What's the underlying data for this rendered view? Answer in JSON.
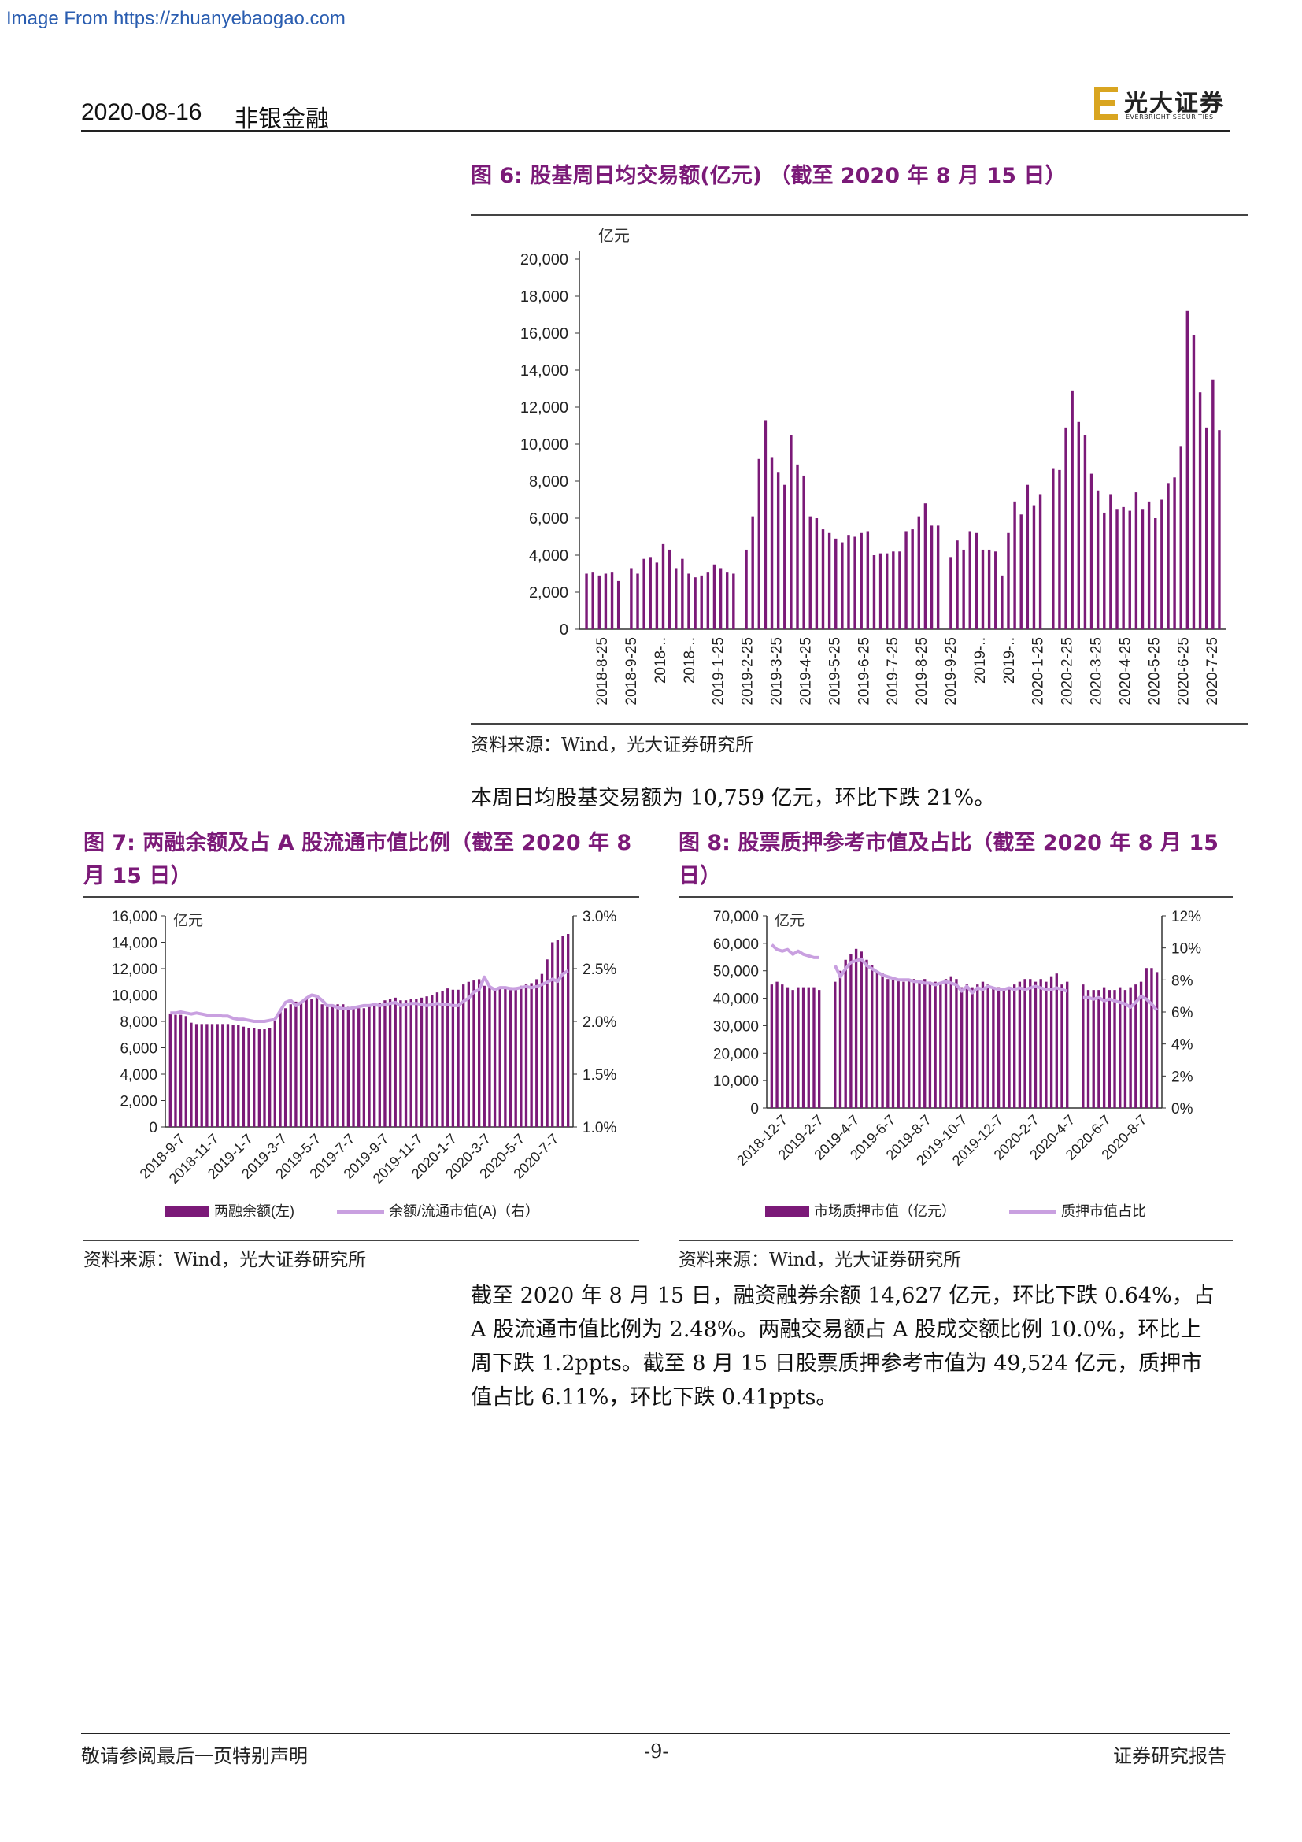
{
  "watermark": "Image From https://zhuanyebaogao.com",
  "header": {
    "date": "2020-08-16",
    "sector": "非银金融",
    "logo_cn": "光大证券",
    "logo_en": "EVERBRIGHT SECURITIES"
  },
  "fig6": {
    "title": "图 6: 股基周日均交易额(亿元) （截至 2020 年 8 月 15 日）",
    "source": "资料来源：Wind，光大证券研究所",
    "chart_data": {
      "type": "bar",
      "unit": "亿元",
      "ylim": [
        0,
        20000
      ],
      "yticks": [
        "0",
        "2,000",
        "4,000",
        "6,000",
        "8,000",
        "10,000",
        "12,000",
        "14,000",
        "16,000",
        "18,000",
        "20,000"
      ],
      "xtick_labels": [
        "2018-8-25",
        "2018-9-25",
        "2018-..",
        "2018-..",
        "2019-1-25",
        "2019-2-25",
        "2019-3-25",
        "2019-4-25",
        "2019-5-25",
        "2019-6-25",
        "2019-7-25",
        "2019-8-25",
        "2019-9-25",
        "2019-..",
        "2019-..",
        "2020-1-25",
        "2020-2-25",
        "2020-3-25",
        "2020-4-25",
        "2020-5-25",
        "2020-6-25",
        "2020-7-25"
      ],
      "color": "#7b1a78",
      "values": [
        3000,
        3100,
        2900,
        3000,
        3100,
        2600,
        0,
        3300,
        3000,
        3800,
        3900,
        3600,
        4600,
        4300,
        3300,
        3800,
        3000,
        2800,
        2900,
        3100,
        3500,
        3300,
        3100,
        3000,
        0,
        4300,
        6100,
        9200,
        11300,
        9300,
        8500,
        7800,
        10500,
        8900,
        8300,
        6100,
        6000,
        5400,
        5200,
        4900,
        4700,
        5100,
        5000,
        5200,
        5300,
        4000,
        4100,
        4100,
        4200,
        4200,
        5300,
        5400,
        6100,
        6800,
        5600,
        5600,
        0,
        3900,
        4800,
        4300,
        5300,
        5200,
        4300,
        4300,
        4200,
        2900,
        5200,
        6900,
        6200,
        7800,
        6700,
        7300,
        0,
        8700,
        8600,
        10900,
        12900,
        11200,
        10500,
        8400,
        7500,
        6300,
        7300,
        6500,
        6600,
        6400,
        7400,
        6500,
        6900,
        6000,
        7000,
        7900,
        8200,
        9900,
        17200,
        15900,
        12800,
        10900,
        13500,
        10759
      ]
    }
  },
  "para1": "本周日均股基交易额为 10,759 亿元，环比下跌 21%。",
  "fig7": {
    "title_l1": "图 7: 两融余额及占 A 股流通市值比例（截至 2020 年 8",
    "title_l2": "月 15 日）",
    "source": "资料来源：Wind，光大证券研究所",
    "chart_data": {
      "type": "bar+line",
      "unit": "亿元",
      "ylim_left": [
        0,
        16000
      ],
      "yticks_left": [
        "0",
        "2,000",
        "4,000",
        "6,000",
        "8,000",
        "10,000",
        "12,000",
        "14,000",
        "16,000"
      ],
      "ylim_right": [
        1.0,
        3.0
      ],
      "yticks_right": [
        "1.0%",
        "1.5%",
        "2.0%",
        "2.5%",
        "3.0%"
      ],
      "xtick_labels": [
        "2018-9-7",
        "2018-11-7",
        "2019-1-7",
        "2019-3-7",
        "2019-5-7",
        "2019-7-7",
        "2019-9-7",
        "2019-11-7",
        "2020-1-7",
        "2020-3-7",
        "2020-5-7",
        "2020-7-7"
      ],
      "legend": [
        "两融余额(左)",
        "余额/流通市值(A)（右）"
      ],
      "series": [
        {
          "name": "两融余额(左)",
          "color": "#7b1a78",
          "values": [
            8600,
            8500,
            8500,
            8400,
            7900,
            7800,
            7800,
            7800,
            7800,
            7800,
            7800,
            7800,
            7700,
            7700,
            7600,
            7500,
            7500,
            7400,
            7400,
            7500,
            8200,
            8800,
            9000,
            9300,
            9500,
            9500,
            9800,
            9700,
            9900,
            9300,
            9100,
            9200,
            9300,
            9300,
            9100,
            9000,
            9000,
            9000,
            9100,
            9200,
            9400,
            9600,
            9700,
            9800,
            9600,
            9600,
            9700,
            9700,
            9800,
            9900,
            10000,
            10200,
            10300,
            10500,
            10400,
            10400,
            10800,
            11000,
            11100,
            11200,
            10700,
            10500,
            10400,
            10600,
            10500,
            10600,
            10600,
            10700,
            10800,
            10900,
            11200,
            11600,
            12700,
            14000,
            14200,
            14500,
            14627
          ]
        },
        {
          "name": "余额/流通市值(A)（右）",
          "color": "#c9a0e0",
          "values": [
            2.08,
            2.08,
            2.09,
            2.08,
            2.07,
            2.08,
            2.07,
            2.06,
            2.06,
            2.06,
            2.05,
            2.05,
            2.03,
            2.02,
            2.02,
            2.01,
            2.0,
            2.0,
            2.0,
            2.01,
            2.02,
            2.1,
            2.18,
            2.2,
            2.15,
            2.18,
            2.22,
            2.25,
            2.24,
            2.2,
            2.15,
            2.15,
            2.13,
            2.12,
            2.12,
            2.13,
            2.14,
            2.15,
            2.15,
            2.16,
            2.15,
            2.16,
            2.17,
            2.18,
            2.15,
            2.16,
            2.17,
            2.17,
            2.16,
            2.15,
            2.16,
            2.17,
            2.16,
            2.16,
            2.15,
            2.15,
            2.19,
            2.22,
            2.28,
            2.3,
            2.42,
            2.33,
            2.3,
            2.32,
            2.32,
            2.31,
            2.31,
            2.32,
            2.33,
            2.32,
            2.33,
            2.35,
            2.37,
            2.4,
            2.38,
            2.45,
            2.48
          ]
        }
      ]
    }
  },
  "fig8": {
    "title_l1": "图 8: 股票质押参考市值及占比（截至 2020 年 8 月 15",
    "title_l2": "日）",
    "source": "资料来源：Wind，光大证券研究所",
    "chart_data": {
      "type": "bar+line",
      "unit": "亿元",
      "ylim_left": [
        0,
        70000
      ],
      "yticks_left": [
        "0",
        "10,000",
        "20,000",
        "30,000",
        "40,000",
        "50,000",
        "60,000",
        "70,000"
      ],
      "ylim_right": [
        0,
        12
      ],
      "yticks_right": [
        "0%",
        "2%",
        "4%",
        "6%",
        "8%",
        "10%",
        "12%"
      ],
      "xtick_labels": [
        "2018-12-7",
        "2019-2-7",
        "2019-4-7",
        "2019-6-7",
        "2019-8-7",
        "2019-10-7",
        "2019-12-7",
        "2020-2-7",
        "2020-4-7",
        "2020-6-7",
        "2020-8-7"
      ],
      "legend": [
        "市场质押市值（亿元）",
        "质押市值占比"
      ],
      "series": [
        {
          "name": "市场质押市值（亿元）",
          "color": "#7b1a78",
          "values": [
            45000,
            46000,
            45000,
            44000,
            43000,
            44000,
            44000,
            44000,
            44000,
            43000,
            null,
            null,
            46000,
            50000,
            54000,
            56000,
            58000,
            57000,
            54000,
            52000,
            50000,
            49000,
            47000,
            47000,
            47000,
            46000,
            47000,
            47000,
            46000,
            47000,
            46000,
            46000,
            45000,
            47000,
            48000,
            47000,
            44000,
            45000,
            44000,
            45000,
            46000,
            45000,
            44000,
            44000,
            43000,
            44000,
            45000,
            46000,
            47000,
            47000,
            46000,
            47000,
            46000,
            48000,
            49000,
            45000,
            46000,
            null,
            null,
            45000,
            43000,
            43000,
            43000,
            44000,
            43000,
            43000,
            44000,
            43000,
            44000,
            45000,
            46000,
            51000,
            51000,
            49524
          ]
        },
        {
          "name": "质押市值占比",
          "color": "#c9a0e0",
          "values": [
            10.2,
            9.9,
            9.8,
            9.9,
            9.6,
            9.8,
            9.6,
            9.5,
            9.4,
            9.4,
            null,
            null,
            8.9,
            8.2,
            8.7,
            9.1,
            9.2,
            9.3,
            8.9,
            8.7,
            8.5,
            8.3,
            8.2,
            8.1,
            8.0,
            8.0,
            8.0,
            7.9,
            7.9,
            7.8,
            7.8,
            7.7,
            7.8,
            7.9,
            7.8,
            7.7,
            7.3,
            7.6,
            7.2,
            7.5,
            7.4,
            7.6,
            7.5,
            7.4,
            7.4,
            7.5,
            7.4,
            7.5,
            7.4,
            7.5,
            7.6,
            7.5,
            7.4,
            7.4,
            7.5,
            7.4,
            7.3,
            null,
            null,
            6.9,
            6.9,
            6.8,
            6.9,
            6.7,
            6.8,
            6.7,
            6.6,
            6.5,
            6.3,
            6.6,
            7.0,
            6.8,
            6.5,
            6.11
          ]
        }
      ]
    }
  },
  "para2": [
    "截至 2020 年 8 月 15 日，融资融券余额 14,627 亿元，环比下跌 0.64%，占",
    "A 股流通市值比例为 2.48%。两融交易额占 A 股成交额比例 10.0%，环比上",
    "周下跌 1.2ppts。截至 8 月 15 日股票质押参考市值为 49,524 亿元，质押市",
    "值占比 6.11%，环比下跌 0.41ppts。"
  ],
  "footer": {
    "left": "敬请参阅最后一页特别声明",
    "center": "-9-",
    "right": "证券研究报告"
  }
}
